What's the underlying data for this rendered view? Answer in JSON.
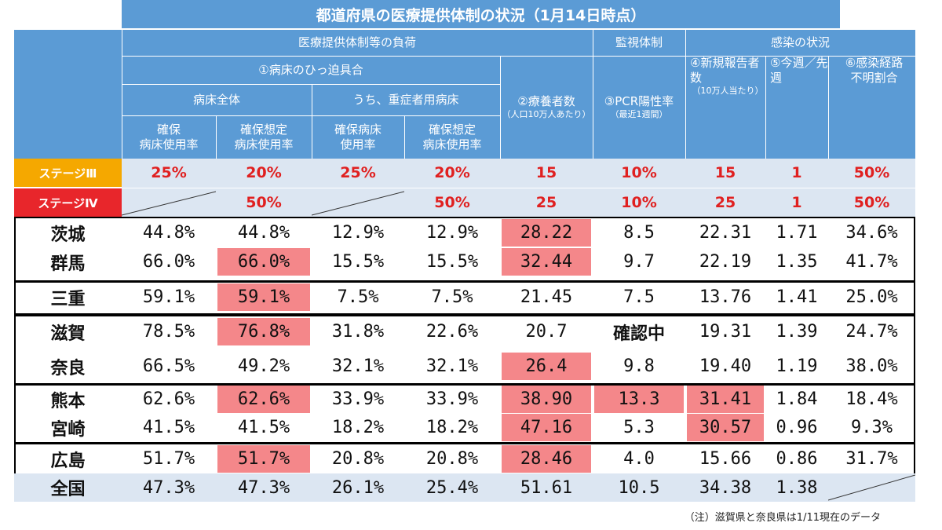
{
  "title": "都道府県の医療提供体制の状況（1月14日時点）",
  "group_headers": {
    "burden": "医療提供体制等の負荷",
    "monitoring": "監視体制",
    "infection": "感染の状況"
  },
  "sub_headers": {
    "bed_pressure": "①病床のひっ迫具合",
    "all_beds": "病床全体",
    "severe_beds": "うち、重症者用病床"
  },
  "columns": [
    {
      "line1": "確保",
      "line2": "病床使用率"
    },
    {
      "line1": "確保想定",
      "line2": "病床使用率"
    },
    {
      "line1": "確保病床",
      "line2": "使用率"
    },
    {
      "line1": "確保想定",
      "line2": "病床使用率"
    },
    {
      "line1": "②療養者数",
      "small": "（人口10万人あたり）"
    },
    {
      "line1": "③PCR陽性率",
      "small": "（最近1週間）"
    },
    {
      "line1": "④新規報告者数",
      "small": "（10万人当たり）"
    },
    {
      "line1": "⑤今週／先週"
    },
    {
      "line1": "⑥感染経路",
      "line2": "不明割合"
    }
  ],
  "stages": [
    {
      "label": "ステージⅢ",
      "color": "#f5a800",
      "values": [
        "25%",
        "20%",
        "25%",
        "20%",
        "15",
        "10%",
        "15",
        "1",
        "50%"
      ]
    },
    {
      "label": "ステージⅣ",
      "color": "#e8262b",
      "values": [
        "",
        "50%",
        "",
        "50%",
        "25",
        "10%",
        "25",
        "1",
        "50%"
      ]
    }
  ],
  "rows": [
    {
      "pref": "茨城",
      "values": [
        "44.8%",
        "44.8%",
        "12.9%",
        "12.9%",
        "28.22",
        "8.5",
        "22.31",
        "1.71",
        "34.6%"
      ],
      "highlight": [
        4
      ]
    },
    {
      "pref": "群馬",
      "values": [
        "66.0%",
        "66.0%",
        "15.5%",
        "15.5%",
        "32.44",
        "9.7",
        "22.19",
        "1.35",
        "41.7%"
      ],
      "highlight": [
        1,
        4
      ]
    },
    {
      "pref": "三重",
      "values": [
        "59.1%",
        "59.1%",
        "7.5%",
        "7.5%",
        "21.45",
        "7.5",
        "13.76",
        "1.41",
        "25.0%"
      ],
      "highlight": [
        1
      ]
    },
    {
      "pref": "滋賀",
      "values": [
        "78.5%",
        "76.8%",
        "31.8%",
        "22.6%",
        "20.7",
        "確認中",
        "19.31",
        "1.39",
        "24.7%"
      ],
      "highlight": [
        1
      ]
    },
    {
      "pref": "奈良",
      "values": [
        "66.5%",
        "49.2%",
        "32.1%",
        "32.1%",
        "26.4",
        "9.8",
        "19.40",
        "1.19",
        "38.0%"
      ],
      "highlight": [
        4
      ]
    },
    {
      "pref": "熊本",
      "values": [
        "62.6%",
        "62.6%",
        "33.9%",
        "33.9%",
        "38.90",
        "13.3",
        "31.41",
        "1.84",
        "18.4%"
      ],
      "highlight": [
        1,
        4,
        5,
        6
      ]
    },
    {
      "pref": "宮崎",
      "values": [
        "41.5%",
        "41.5%",
        "18.2%",
        "18.2%",
        "47.16",
        "5.3",
        "30.57",
        "0.96",
        "9.3%"
      ],
      "highlight": [
        4,
        6
      ]
    },
    {
      "pref": "広島",
      "values": [
        "51.7%",
        "51.7%",
        "20.8%",
        "20.8%",
        "28.46",
        "4.0",
        "15.66",
        "0.86",
        "31.7%"
      ],
      "highlight": [
        1,
        4
      ]
    }
  ],
  "national": {
    "pref": "全国",
    "values": [
      "47.3%",
      "47.3%",
      "26.1%",
      "25.4%",
      "51.61",
      "10.5",
      "34.38",
      "1.38",
      ""
    ]
  },
  "note": "（注）滋賀県と奈良県は1/11現在のデータ",
  "colors": {
    "header_blue": "#5b9bd5",
    "highlight": "#f4878a",
    "stage_row_bg": "#dce6f2",
    "stage_value": "#e02020"
  }
}
